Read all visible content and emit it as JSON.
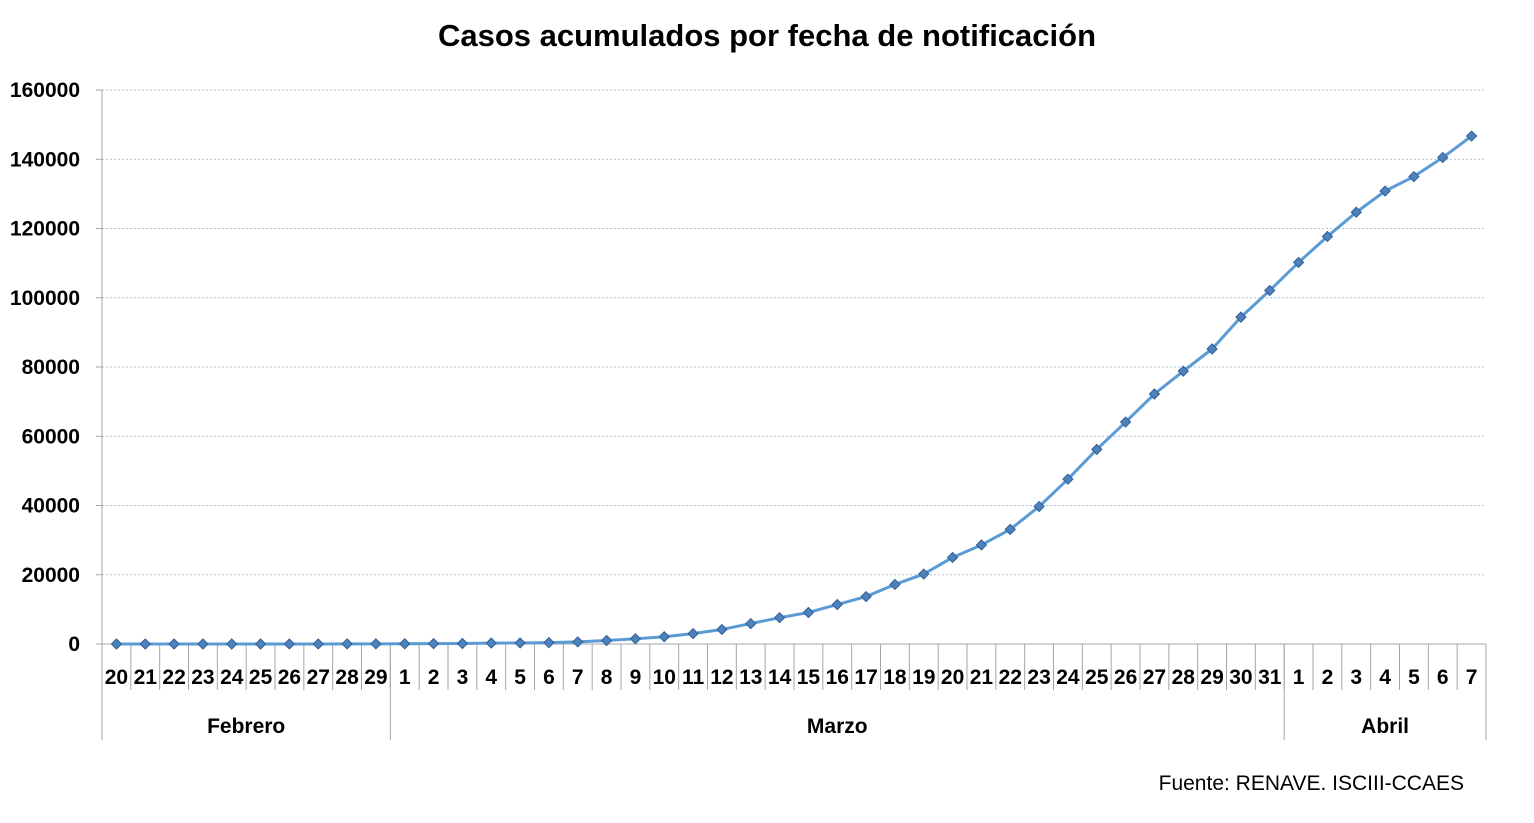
{
  "chart_data": {
    "type": "line",
    "title": "Casos acumulados por fecha de notificación",
    "source": "Fuente: RENAVE. ISCIII-CCAES",
    "xlabel": "",
    "ylabel": "",
    "ylim": [
      0,
      160000
    ],
    "yticks": [
      "0",
      "20000",
      "40000",
      "60000",
      "80000",
      "100000",
      "120000",
      "140000",
      "160000"
    ],
    "grid": true,
    "legend": "none",
    "categories": [
      "20",
      "21",
      "22",
      "23",
      "24",
      "25",
      "26",
      "27",
      "28",
      "29",
      "1",
      "2",
      "3",
      "4",
      "5",
      "6",
      "7",
      "8",
      "9",
      "10",
      "11",
      "12",
      "13",
      "14",
      "15",
      "16",
      "17",
      "18",
      "19",
      "20",
      "21",
      "22",
      "23",
      "24",
      "25",
      "26",
      "27",
      "28",
      "29",
      "30",
      "31",
      "1",
      "2",
      "3",
      "4",
      "5",
      "6",
      "7"
    ],
    "months": [
      {
        "label": "Febrero",
        "count": 10
      },
      {
        "label": "Marzo",
        "count": 31
      },
      {
        "label": "Abril",
        "count": 7
      }
    ],
    "series": [
      {
        "values": [
          2,
          3,
          3,
          3,
          3,
          3,
          12,
          15,
          25,
          45,
          70,
          100,
          150,
          260,
          300,
          400,
          600,
          1000,
          1500,
          2100,
          3000,
          4200,
          5900,
          7600,
          9100,
          11400,
          13700,
          17200,
          20200,
          25000,
          28600,
          33100,
          39700,
          47600,
          56200,
          64100,
          72200,
          78800,
          85200,
          94400,
          102100,
          110200,
          117700,
          124700,
          130800,
          135000,
          140500,
          146700
        ]
      }
    ],
    "colors": {
      "line": "#5b9bd5",
      "marker_fill": "#4f81bd",
      "marker_stroke": "#2f5f99",
      "grid": "#a9c4d6",
      "axis": "#a6a6a6"
    }
  }
}
